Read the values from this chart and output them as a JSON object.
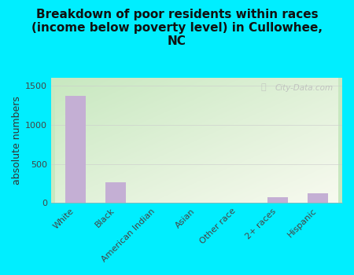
{
  "title": "Breakdown of poor residents within races\n(income below poverty level) in Cullowhee,\nNC",
  "categories": [
    "White",
    "Black",
    "American Indian",
    "Asian",
    "Other race",
    "2+ races",
    "Hispanic"
  ],
  "values": [
    1370,
    270,
    0,
    8,
    0,
    75,
    130
  ],
  "bar_color": "#c4afd4",
  "ylabel": "absolute numbers",
  "ylim": [
    0,
    1600
  ],
  "yticks": [
    0,
    500,
    1000,
    1500
  ],
  "background_color": "#00eeff",
  "plot_bg_color_top_left": "#c8e8c0",
  "plot_bg_color_bottom_right": "#f8faf0",
  "grid_color": "#cccccc",
  "watermark": "City-Data.com",
  "title_fontsize": 11,
  "ylabel_fontsize": 9,
  "tick_fontsize": 8
}
